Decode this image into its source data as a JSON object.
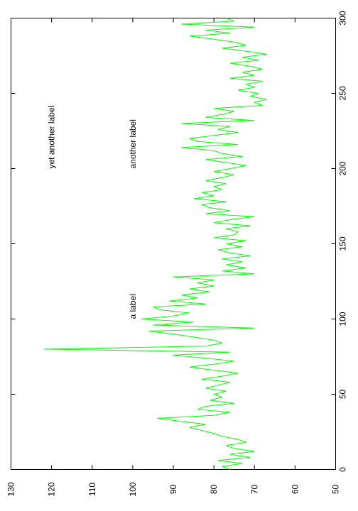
{
  "chart_data": {
    "type": "line",
    "orientation": "rotated-90",
    "title": "",
    "xlabel": "",
    "ylabel": "",
    "xlim": [
      0,
      300
    ],
    "ylim": [
      50,
      130
    ],
    "x_ticks": [
      0,
      50,
      100,
      150,
      200,
      250,
      300
    ],
    "y_ticks": [
      50,
      60,
      70,
      80,
      90,
      100,
      110,
      120,
      130
    ],
    "grid": false,
    "legend": "none",
    "line_color": "#00ff00",
    "annotations": [
      {
        "text": "a label",
        "x": 100,
        "y": 100
      },
      {
        "text": "another label",
        "x": 200,
        "y": 100
      },
      {
        "text": "yet another label",
        "x": 200,
        "y": 120
      }
    ],
    "series": [
      {
        "x": [
          0,
          2,
          4,
          6,
          8,
          10,
          12,
          14,
          16,
          18,
          20,
          22,
          24,
          26,
          28,
          30,
          32,
          34,
          36,
          38,
          40,
          42,
          44,
          46,
          48,
          50,
          52,
          54,
          56,
          58,
          60,
          62,
          64,
          66,
          68,
          70,
          72,
          74,
          76,
          78,
          80,
          82,
          84,
          86,
          88,
          90,
          92,
          94,
          96,
          98,
          100,
          102,
          104,
          106,
          108,
          110,
          112,
          114,
          116,
          118,
          120,
          122,
          124,
          126,
          128,
          130,
          132,
          134,
          136,
          138,
          140,
          142,
          144,
          146,
          148,
          150,
          152,
          154,
          156,
          158,
          160,
          162,
          164,
          166,
          168,
          170,
          172,
          174,
          176,
          178,
          180,
          182,
          184,
          186,
          188,
          190,
          192,
          194,
          196,
          198,
          200,
          202,
          204,
          206,
          208,
          210,
          212,
          214,
          216,
          218,
          220,
          222,
          224,
          226,
          228,
          230,
          232,
          234,
          236,
          238,
          240,
          242,
          244,
          246,
          248,
          250,
          252,
          254,
          256,
          258,
          260,
          262,
          264,
          266,
          268,
          270,
          272,
          274,
          276,
          278,
          280,
          282,
          284,
          286,
          288,
          290,
          292,
          294,
          296,
          298,
          300
        ],
        "y": [
          76,
          78,
          73,
          79,
          71,
          76,
          70,
          75,
          77,
          72,
          74,
          78,
          80,
          83,
          86,
          82,
          88,
          94,
          80,
          76,
          84,
          82,
          75,
          81,
          78,
          80,
          77,
          82,
          79,
          76,
          83,
          78,
          74,
          80,
          86,
          80,
          75,
          82,
          90,
          76,
          122,
          82,
          78,
          80,
          85,
          90,
          96,
          70,
          95,
          85,
          98,
          90,
          86,
          93,
          95,
          82,
          91,
          84,
          88,
          81,
          86,
          80,
          84,
          80,
          90,
          70,
          78,
          72,
          77,
          73,
          78,
          71,
          76,
          79,
          73,
          77,
          72,
          80,
          75,
          74,
          77,
          71,
          80,
          76,
          70,
          82,
          76,
          81,
          83,
          77,
          85,
          80,
          83,
          78,
          80,
          77,
          82,
          78,
          75,
          80,
          76,
          72,
          77,
          82,
          73,
          78,
          80,
          88,
          74,
          84,
          86,
          80,
          74,
          79,
          76,
          88,
          70,
          82,
          78,
          75,
          80,
          68,
          70,
          67,
          71,
          69,
          74,
          70,
          72,
          68,
          76,
          70,
          73,
          68,
          71,
          76,
          69,
          73,
          67,
          72,
          78,
          72,
          75,
          80,
          86,
          76,
          82,
          70,
          88,
          75,
          77
        ]
      }
    ]
  }
}
